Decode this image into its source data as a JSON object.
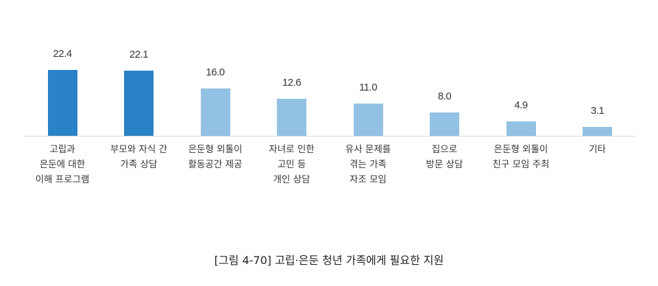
{
  "chart_data": {
    "type": "bar",
    "title": "[그림 4-70] 고립·은둔 청년 가족에게 필요한 지원",
    "xlabel": "",
    "ylabel": "",
    "ylim": [
      0,
      25
    ],
    "grid": false,
    "legend": null,
    "categories": [
      "고립과 은둔에 대한 이해 프로그램",
      "부모와 자식 간 가족 상담",
      "은둔형 외톨이 활동공간 제공",
      "자녀로 인한 고민 등 개인 상담",
      "유사 문제를 겪는 가족 자조 모임",
      "집으로 방문 상담",
      "은둔형 외톨이 친구 모임 주최",
      "기타"
    ],
    "category_lines": [
      [
        "고립과",
        "은둔에 대한",
        "이해 프로그램"
      ],
      [
        "부모와 자식 간",
        "가족 상담"
      ],
      [
        "은둔형 외톨이",
        "활동공간 제공"
      ],
      [
        "자녀로 인한",
        "고민 등",
        "개인 상담"
      ],
      [
        "유사 문제를",
        "겪는 가족",
        "자조 모임"
      ],
      [
        "집으로",
        "방문 상담"
      ],
      [
        "은둔형 외톨이",
        "친구 모임 주최"
      ],
      [
        "기타"
      ]
    ],
    "values": [
      22.4,
      22.1,
      16.0,
      12.6,
      11.0,
      8.0,
      4.9,
      3.1
    ],
    "value_labels": [
      "22.4",
      "22.1",
      "16.0",
      "12.6",
      "11.0",
      "8.0",
      "4.9",
      "3.1"
    ],
    "colors": [
      "#2a82c7",
      "#2a82c7",
      "#93c1e3",
      "#93c1e3",
      "#93c1e3",
      "#93c1e3",
      "#93c1e3",
      "#93c1e3"
    ]
  },
  "caption": "[그림 4-70] 고립·은둔 청년 가족에게 필요한 지원"
}
